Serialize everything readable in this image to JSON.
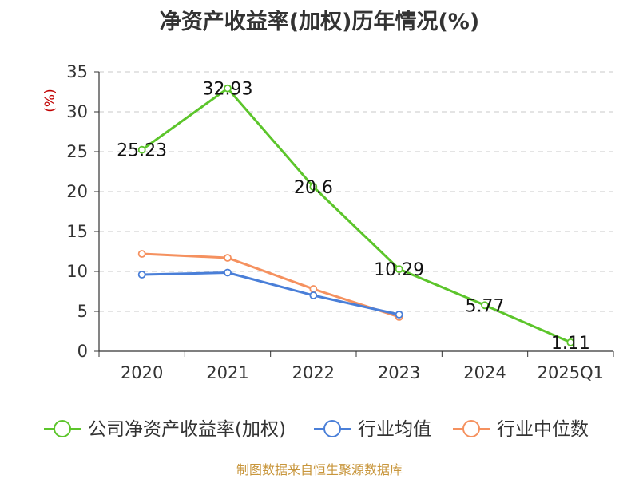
{
  "chart_data": {
    "type": "line",
    "title": "净资产收益率(加权)历年情况(%)",
    "ylabel": "(%)",
    "xlabel": "",
    "categories": [
      "2020",
      "2021",
      "2022",
      "2023",
      "2024",
      "2025Q1"
    ],
    "ylim": [
      0,
      35
    ],
    "yticks": [
      0,
      5,
      10,
      15,
      20,
      25,
      30,
      35
    ],
    "grid": true,
    "legend_position": "bottom",
    "series": [
      {
        "name": "公司净资产收益率(加权)",
        "color": "#5cc52b",
        "values": [
          25.23,
          32.93,
          20.6,
          10.29,
          5.77,
          1.11
        ],
        "labels": [
          "25.23",
          "32.93",
          "20.6",
          "10.29",
          "5.77",
          "1.11"
        ]
      },
      {
        "name": "行业均值",
        "color": "#4a7fd8",
        "values": [
          9.6,
          9.85,
          7.0,
          4.6,
          null,
          null
        ]
      },
      {
        "name": "行业中位数",
        "color": "#f5915f",
        "values": [
          12.2,
          11.7,
          7.8,
          4.3,
          null,
          null
        ]
      }
    ],
    "source": "制图数据来自恒生聚源数据库"
  }
}
